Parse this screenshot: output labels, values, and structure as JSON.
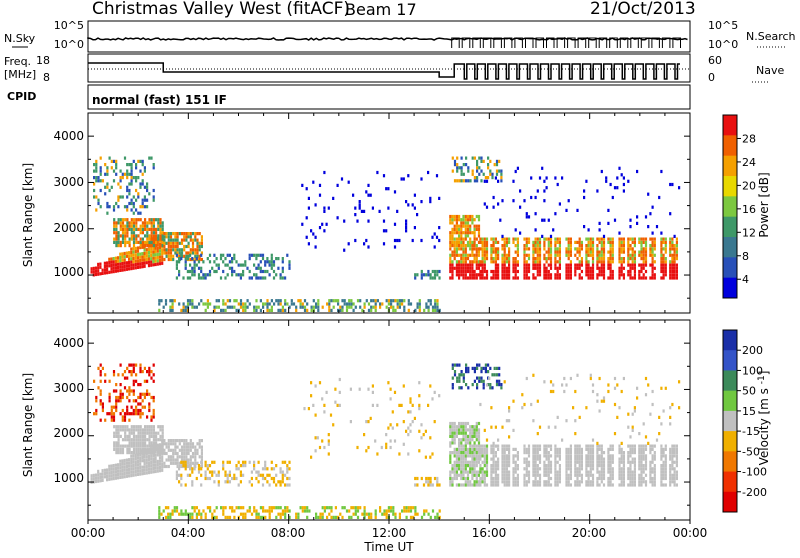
{
  "header": {
    "station": "Christmas Valley West (fitACF)",
    "beam": "Beam 17",
    "date": "21/Oct/2013"
  },
  "top_panels": {
    "nsky_label": "N.Sky",
    "nsky_ticks": [
      "10^5",
      "10^0"
    ],
    "nsearch_label": "N.Search",
    "nsearch_ticks": [
      "10^5",
      "10^0"
    ],
    "freq_label_1": "Freq.",
    "freq_label_2": "[MHz]",
    "freq_ticks": [
      "18",
      "8"
    ],
    "nave_label": "Nave",
    "nave_ticks": [
      "60",
      "0"
    ],
    "cpid_label": "CPID",
    "cpid_value": "normal (fast) 151 IF"
  },
  "x_axis": {
    "ticks": [
      "00:00",
      "04:00",
      "08:00",
      "12:00",
      "16:00",
      "20:00",
      "00:00"
    ],
    "label": "Time UT"
  },
  "power_panel": {
    "ylabel": "Slant Range [km]",
    "yticks": [
      "4000",
      "3000",
      "2000",
      "1000"
    ],
    "colorbar_label": "Power [dB]",
    "colorbar_ticks": [
      "28",
      "24",
      "20",
      "16",
      "12",
      "8",
      "4"
    ],
    "colors": [
      "#0000dd",
      "#2850b8",
      "#3a7890",
      "#3e9868",
      "#7cc840",
      "#e8d800",
      "#f5a000",
      "#f06000",
      "#e81010"
    ]
  },
  "velocity_panel": {
    "ylabel": "Slant Range [km]",
    "yticks": [
      "4000",
      "3000",
      "2000",
      "1000"
    ],
    "colorbar_label": "Velocity [m s^-1]",
    "colorbar_ticks": [
      "200",
      "100",
      "50",
      "15",
      "-15",
      "-50",
      "-100",
      "-200"
    ],
    "colors": [
      "#1a2fa8",
      "#3454c8",
      "#3c8a5a",
      "#70c840",
      "#c0c0c0",
      "#f0b000",
      "#f07800",
      "#f03000",
      "#e00000"
    ]
  },
  "chart_data": [
    {
      "type": "heatmap",
      "title": "Power",
      "x_range_hours": [
        0,
        24
      ],
      "y_range_km": [
        180,
        4500
      ],
      "value_range_db": [
        0,
        30
      ],
      "features": [
        {
          "name": "main echo band",
          "t": [
            0,
            3
          ],
          "range_km": [
            1000,
            1900
          ],
          "power_db": 26
        },
        {
          "name": "band after 03:00",
          "t": [
            3,
            4.5
          ],
          "range_km": [
            1300,
            1900
          ],
          "power_db": 22
        },
        {
          "name": "upper patch",
          "t": [
            0.5,
            2.5
          ],
          "range_km": [
            2400,
            3500
          ],
          "power_db": 12
        },
        {
          "name": "mid band",
          "t": [
            4,
            8
          ],
          "range_km": [
            900,
            1400
          ],
          "power_db": 8
        },
        {
          "name": "ground scatter floor",
          "t": [
            3,
            14
          ],
          "range_km": [
            200,
            400
          ],
          "power_db": 10
        },
        {
          "name": "post 14:00 band",
          "t": [
            14.4,
            23.6
          ],
          "range_km": [
            900,
            1800
          ],
          "power_db": 24
        }
      ]
    },
    {
      "type": "heatmap",
      "title": "Velocity",
      "x_range_hours": [
        0,
        24
      ],
      "y_range_km": [
        180,
        4500
      ],
      "value_range_ms": [
        -200,
        200
      ],
      "features": [
        {
          "name": "ground scatter grey band",
          "t": [
            0,
            3.5
          ],
          "range_km": [
            900,
            2100
          ],
          "velocity": 0
        },
        {
          "name": "upper red patch",
          "t": [
            1.5,
            3.2
          ],
          "range_km": [
            2700,
            2900
          ],
          "velocity": -150
        },
        {
          "name": "upper blue patch",
          "t": [
            15.5,
            16.3
          ],
          "range_km": [
            3100,
            3400
          ],
          "velocity": 200
        },
        {
          "name": "green returns",
          "t": [
            14,
            16
          ],
          "range_km": [
            1000,
            2200
          ],
          "velocity": 30
        },
        {
          "name": "orange floor",
          "t": [
            4,
            14
          ],
          "range_km": [
            200,
            500
          ],
          "velocity": -40
        },
        {
          "name": "grey post 14:00 band",
          "t": [
            14.4,
            23.6
          ],
          "range_km": [
            900,
            1800
          ],
          "velocity": 0
        }
      ]
    }
  ]
}
